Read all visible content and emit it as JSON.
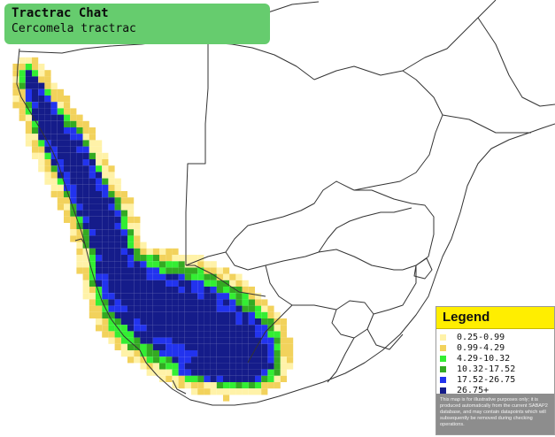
{
  "title": {
    "common_name": "Tractrac Chat",
    "scientific_name": "Cercomela tractrac"
  },
  "legend": {
    "title": "Legend",
    "items": [
      {
        "label": "0.25-0.99",
        "color": "#fff2a8"
      },
      {
        "label": "0.99-4.29",
        "color": "#f2d25c"
      },
      {
        "label": "4.29-10.32",
        "color": "#33ee33"
      },
      {
        "label": "10.32-17.52",
        "color": "#33aa22"
      },
      {
        "label": "17.52-26.75",
        "color": "#2233ee"
      },
      {
        "label": "26.75+",
        "color": "#151c8a"
      }
    ],
    "note": "This map is for illustrative purposes only; it is produced automatically from the current SABAP2 database, and may contain datapoints which will subsequently be removed during checking operations."
  },
  "colors": {
    "title_background": "#66cc6e",
    "legend_header": "#ffee00",
    "border_lines": "#333333"
  }
}
